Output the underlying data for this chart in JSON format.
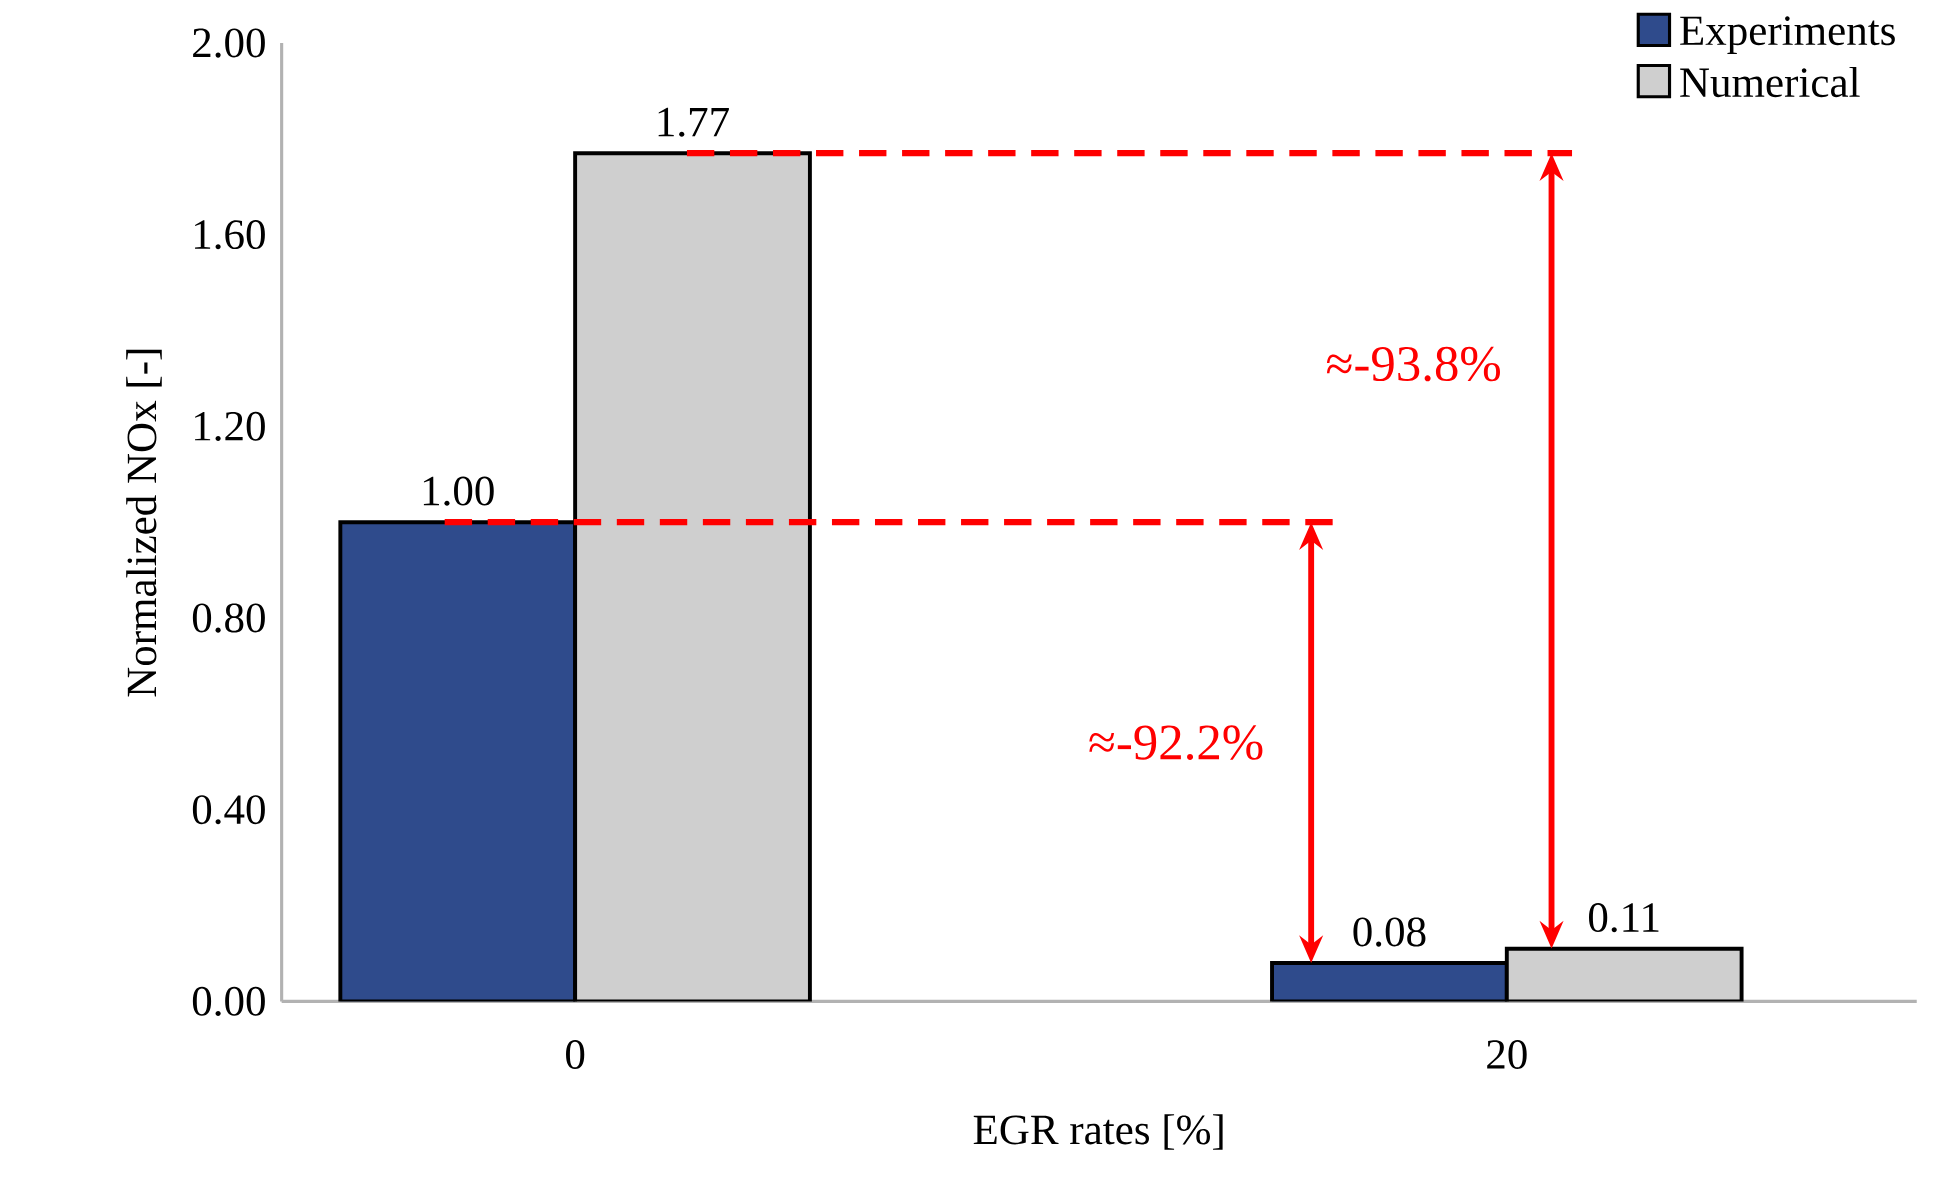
{
  "chart_data": {
    "type": "bar",
    "xlabel": "EGR rates [%]",
    "ylabel": "Normalized NOx [-]",
    "categories": [
      "0",
      "20"
    ],
    "series": [
      {
        "name": "Experiments",
        "color": "#2f4b8c",
        "values": [
          1.0,
          0.08
        ],
        "value_labels": [
          "1.00",
          "0.08"
        ]
      },
      {
        "name": "Numerical",
        "color": "#cfcfcf",
        "values": [
          1.77,
          0.11
        ],
        "value_labels": [
          "1.77",
          "0.11"
        ]
      }
    ],
    "ylim": [
      0,
      2
    ],
    "yticks": [
      {
        "value": 0,
        "label": "0.00"
      },
      {
        "value": 0.4,
        "label": "0.40"
      },
      {
        "value": 0.8,
        "label": "0.80"
      },
      {
        "value": 1.2,
        "label": "1.20"
      },
      {
        "value": 1.6,
        "label": "1.60"
      },
      {
        "value": 2.0,
        "label": "2.00"
      }
    ],
    "ref_lines": [
      {
        "axis": "y",
        "value": 1.0,
        "color": "#ff0000",
        "line_style": "dashed"
      },
      {
        "axis": "y",
        "value": 1.77,
        "color": "#ff0000",
        "line_style": "dashed"
      }
    ],
    "annotations": [
      "≈-92.2%",
      "≈-93.8%"
    ],
    "legend": "top right",
    "grid": false
  }
}
